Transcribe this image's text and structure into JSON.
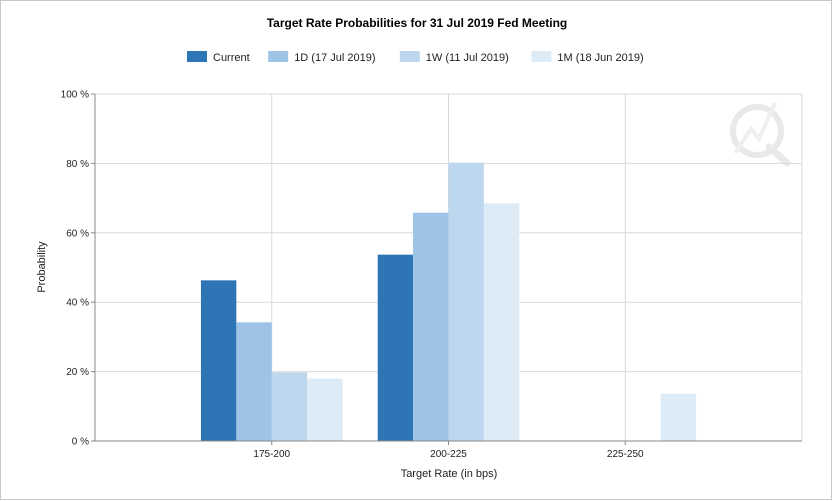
{
  "chart_data": {
    "type": "bar",
    "title": "Target Rate Probabilities for 31 Jul 2019 Fed Meeting",
    "xlabel": "Target Rate (in bps)",
    "ylabel": "Probability",
    "categories": [
      "175-200",
      "200-225",
      "225-250"
    ],
    "ylim": [
      0,
      100
    ],
    "yticks": [
      "0 %",
      "20 %",
      "40 %",
      "60 %",
      "80 %",
      "100 %"
    ],
    "ytick_values": [
      0,
      20,
      40,
      60,
      80,
      100
    ],
    "grid": true,
    "legend_position": "top",
    "series": [
      {
        "name": "Current",
        "color": "#2e75b6",
        "values": [
          46.3,
          53.7,
          0
        ]
      },
      {
        "name": "1D (17 Jul 2019)",
        "color": "#9dc3e6",
        "values": [
          34.2,
          65.8,
          0
        ]
      },
      {
        "name": "1W (11 Jul 2019)",
        "color": "#bdd7ee",
        "values": [
          19.8,
          80.2,
          0
        ]
      },
      {
        "name": "1M (18 Jun 2019)",
        "color": "#ddebf7",
        "values": [
          18.0,
          68.5,
          13.6
        ]
      }
    ]
  }
}
